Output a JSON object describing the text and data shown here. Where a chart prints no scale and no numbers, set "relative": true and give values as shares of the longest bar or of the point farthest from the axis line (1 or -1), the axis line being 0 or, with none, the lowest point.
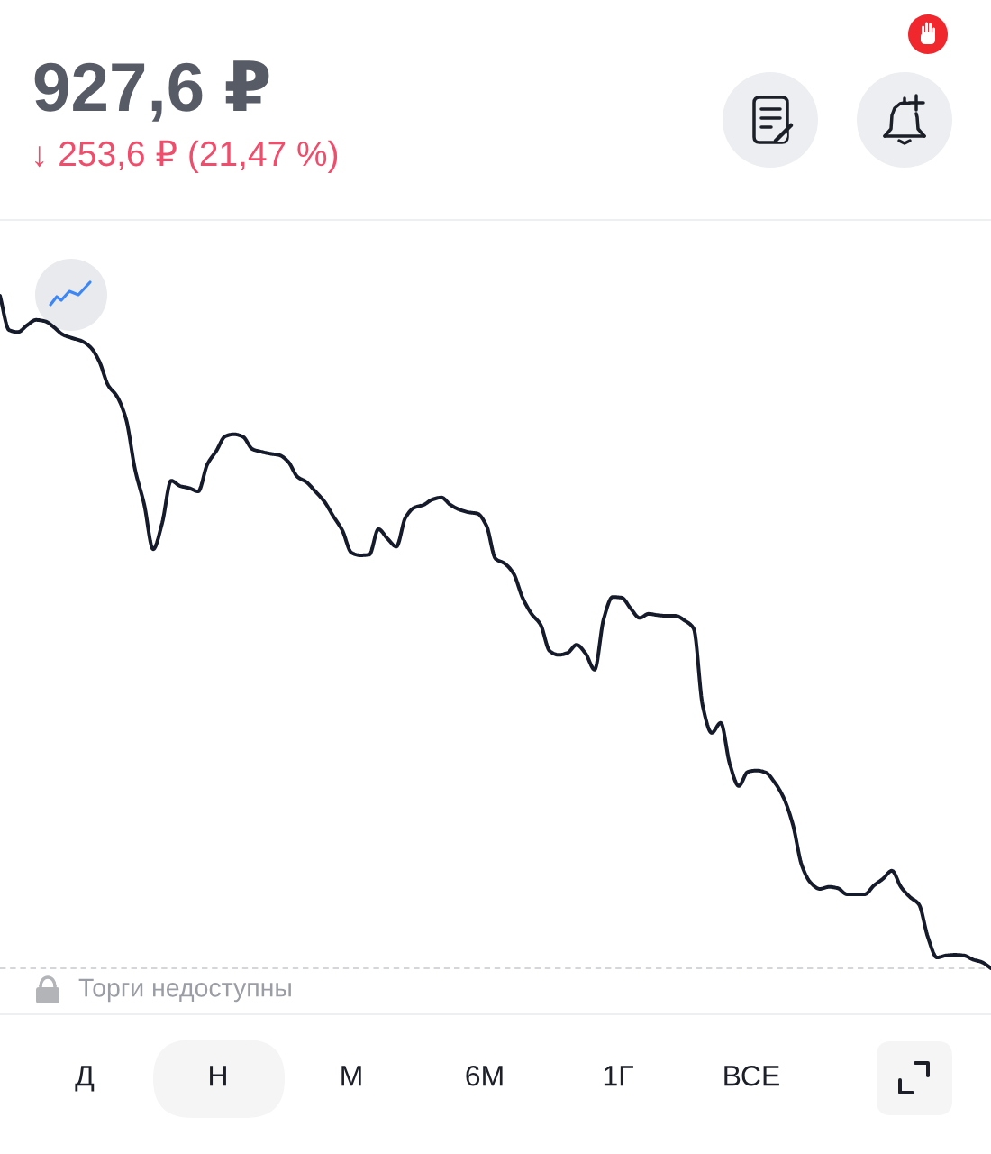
{
  "chart_data": {
    "type": "line",
    "title": "927,6 ₽",
    "subtitle": "↓ 253,6 ₽ (21,47 %)",
    "relative": true,
    "color": "#151b2b",
    "categories": [
      null,
      null,
      null,
      null,
      null,
      null,
      null,
      null,
      null,
      null,
      null,
      null,
      null,
      null,
      null,
      null,
      null,
      null,
      null,
      null,
      null,
      null,
      null,
      null,
      null,
      null,
      null,
      null,
      null,
      null,
      null,
      null,
      null,
      null,
      null,
      null,
      null,
      null,
      null,
      null,
      null,
      null,
      null,
      null,
      null,
      null,
      null,
      null,
      null,
      null,
      null,
      null,
      null,
      null,
      null,
      null,
      null,
      null,
      null,
      null,
      null,
      null,
      null,
      null,
      null,
      null,
      null,
      null,
      null,
      null,
      null,
      null,
      null,
      null,
      null,
      null,
      null,
      null,
      null,
      null,
      null,
      null,
      null,
      null,
      null,
      null,
      null,
      null,
      null,
      null,
      null,
      null,
      null,
      null,
      null,
      null,
      null,
      null,
      null,
      null,
      null,
      null,
      null,
      null,
      null,
      null,
      null,
      null,
      null,
      null,
      null
    ],
    "values": [
      1.0,
      0.949,
      0.946,
      0.956,
      0.964,
      0.962,
      0.953,
      0.942,
      0.937,
      0.933,
      0.924,
      0.903,
      0.867,
      0.85,
      0.816,
      0.741,
      0.69,
      0.623,
      0.662,
      0.725,
      0.717,
      0.714,
      0.709,
      0.749,
      0.769,
      0.791,
      0.794,
      0.79,
      0.772,
      0.768,
      0.765,
      0.763,
      0.753,
      0.731,
      0.723,
      0.709,
      0.694,
      0.672,
      0.651,
      0.618,
      0.614,
      0.615,
      0.653,
      0.639,
      0.627,
      0.67,
      0.685,
      0.689,
      0.697,
      0.7,
      0.689,
      0.682,
      0.678,
      0.676,
      0.658,
      0.609,
      0.602,
      0.587,
      0.551,
      0.527,
      0.511,
      0.472,
      0.466,
      0.469,
      0.481,
      0.468,
      0.444,
      0.519,
      0.552,
      0.551,
      0.535,
      0.521,
      0.527,
      0.525,
      0.524,
      0.524,
      0.517,
      0.505,
      0.39,
      0.35,
      0.365,
      0.304,
      0.271,
      0.292,
      0.294,
      0.291,
      0.276,
      0.253,
      0.214,
      0.153,
      0.127,
      0.118,
      0.121,
      0.119,
      0.11,
      0.11,
      0.11,
      0.123,
      0.133,
      0.145,
      0.121,
      0.106,
      0.095,
      0.046,
      0.016,
      0.019,
      0.02,
      0.019,
      0.013,
      0.009,
      0.0
    ],
    "ref_lines": [
      {
        "axis": "y",
        "value": 0,
        "color": "#c8c9cd",
        "line_style": "dashed"
      }
    ],
    "annotations": [
      "Торги недоступны",
      "Д",
      "Н",
      "М",
      "6М",
      "1Г",
      "ВСЕ"
    ]
  }
}
